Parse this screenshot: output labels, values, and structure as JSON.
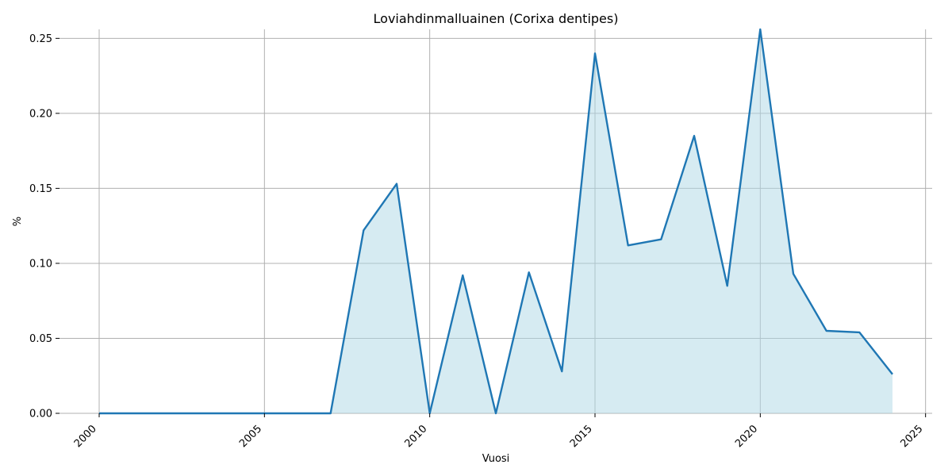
{
  "chart_data": {
    "type": "area",
    "title": "Loviahdinmalluainen (Corixa dentipes)",
    "xlabel": "Vuosi",
    "ylabel": "%",
    "x": [
      2000,
      2001,
      2002,
      2003,
      2004,
      2005,
      2006,
      2007,
      2008,
      2009,
      2010,
      2011,
      2012,
      2013,
      2014,
      2015,
      2016,
      2017,
      2018,
      2019,
      2020,
      2021,
      2022,
      2023,
      2024
    ],
    "series": [
      {
        "values": [
          0,
          0,
          0,
          0,
          0,
          0,
          0,
          0,
          0.122,
          0.153,
          0,
          0.092,
          0,
          0.094,
          0.028,
          0.24,
          0.112,
          0.116,
          0.185,
          0.085,
          0.256,
          0.093,
          0.055,
          0.054,
          0.026
        ]
      }
    ],
    "xlim": [
      1998.8,
      2025.2
    ],
    "ylim": [
      0,
      0.256
    ],
    "xticks": [
      2000,
      2005,
      2010,
      2015,
      2020,
      2025
    ],
    "xtick_labels": [
      "2000",
      "2005",
      "2010",
      "2015",
      "2020",
      "2025"
    ],
    "yticks": [
      0,
      0.05,
      0.1,
      0.15,
      0.2,
      0.25
    ],
    "ytick_labels": [
      "0.00",
      "0.05",
      "0.10",
      "0.15",
      "0.20",
      "0.25"
    ],
    "grid": true,
    "colors": {
      "line": "#1f77b4",
      "fill": "#add8e6"
    }
  }
}
